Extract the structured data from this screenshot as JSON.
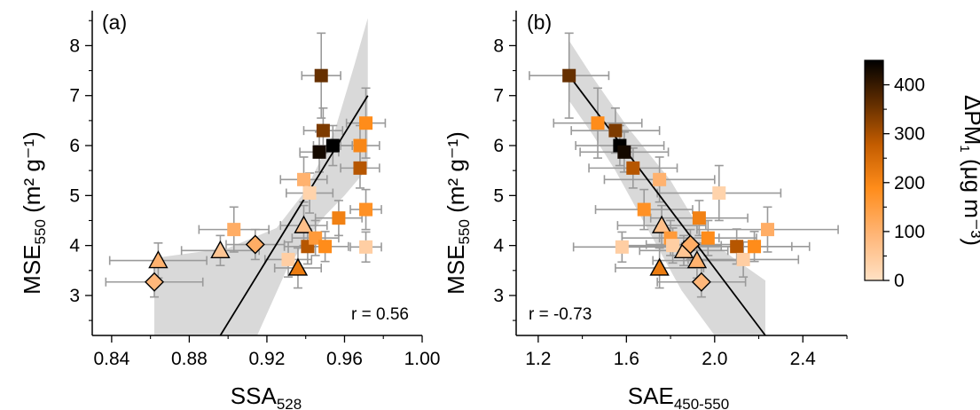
{
  "chart_data": [
    {
      "type": "scatter",
      "panel_label": "(a)",
      "xlabel_main": "SSA",
      "xlabel_sub": "528",
      "ylabel_main": "MSE",
      "ylabel_sub": "550",
      "ylabel_unit": " (m² g⁻¹)",
      "xlim": [
        0.83,
        1.0
      ],
      "ylim": [
        2.2,
        8.7
      ],
      "xticks": [
        "0.84",
        "0.88",
        "0.92",
        "0.96",
        "1.00"
      ],
      "xtick_values": [
        0.84,
        0.88,
        0.92,
        0.96,
        1.0
      ],
      "yticks": [
        "3",
        "4",
        "5",
        "6",
        "7",
        "8"
      ],
      "ytick_values": [
        3,
        4,
        5,
        6,
        7,
        8
      ],
      "r_label": "r = 0.56",
      "fit_line": [
        [
          0.896,
          2.2
        ],
        [
          0.972,
          7.0
        ]
      ],
      "confidence_band": {
        "upper": [
          [
            0.862,
            3.75
          ],
          [
            0.9,
            3.95
          ],
          [
            0.925,
            4.35
          ],
          [
            0.94,
            5.1
          ],
          [
            0.955,
            6.3
          ],
          [
            0.965,
            7.6
          ],
          [
            0.972,
            8.55
          ]
        ],
        "lower": [
          [
            0.972,
            5.55
          ],
          [
            0.96,
            5.0
          ],
          [
            0.95,
            4.6
          ],
          [
            0.94,
            4.1
          ],
          [
            0.93,
            3.5
          ],
          [
            0.915,
            2.2
          ],
          [
            0.862,
            2.2
          ]
        ]
      },
      "points": [
        {
          "marker": "diamond",
          "x": 0.862,
          "y": 3.27,
          "xerr": 0.025,
          "yerr": 0.3,
          "dpm": 90
        },
        {
          "marker": "triangle",
          "x": 0.864,
          "y": 3.7,
          "xerr": 0.025,
          "yerr": 0.35,
          "dpm": 100
        },
        {
          "marker": "triangle",
          "x": 0.896,
          "y": 3.9,
          "xerr": 0.02,
          "yerr": 0.3,
          "dpm": 60
        },
        {
          "marker": "square",
          "x": 0.903,
          "y": 4.32,
          "xerr": 0.018,
          "yerr": 0.45,
          "dpm": 110
        },
        {
          "marker": "diamond",
          "x": 0.914,
          "y": 4.02,
          "xerr": 0.015,
          "yerr": 0.3,
          "dpm": 110
        },
        {
          "marker": "square",
          "x": 0.931,
          "y": 3.72,
          "xerr": 0.012,
          "yerr": 0.35,
          "dpm": 40
        },
        {
          "marker": "triangle",
          "x": 0.936,
          "y": 3.55,
          "xerr": 0.012,
          "yerr": 0.4,
          "dpm": 210
        },
        {
          "marker": "triangle",
          "x": 0.939,
          "y": 4.4,
          "xerr": 0.012,
          "yerr": 0.4,
          "dpm": 70
        },
        {
          "marker": "square",
          "x": 0.939,
          "y": 5.32,
          "xerr": 0.012,
          "yerr": 0.45,
          "dpm": 100
        },
        {
          "marker": "square",
          "x": 0.942,
          "y": 5.05,
          "xerr": 0.012,
          "yerr": 0.4,
          "dpm": 30
        },
        {
          "marker": "square",
          "x": 0.941,
          "y": 3.98,
          "xerr": 0.012,
          "yerr": 0.35,
          "dpm": 280
        },
        {
          "marker": "square",
          "x": 0.945,
          "y": 4.15,
          "xerr": 0.012,
          "yerr": 0.35,
          "dpm": 150
        },
        {
          "marker": "square",
          "x": 0.95,
          "y": 3.98,
          "xerr": 0.012,
          "yerr": 0.3,
          "dpm": 180
        },
        {
          "marker": "square",
          "x": 0.947,
          "y": 5.87,
          "xerr": 0.01,
          "yerr": 0.4,
          "dpm": 430
        },
        {
          "marker": "square",
          "x": 0.948,
          "y": 7.4,
          "xerr": 0.01,
          "yerr": 0.85,
          "dpm": 350
        },
        {
          "marker": "square",
          "x": 0.949,
          "y": 6.3,
          "xerr": 0.01,
          "yerr": 0.45,
          "dpm": 330
        },
        {
          "marker": "square",
          "x": 0.954,
          "y": 6.0,
          "xerr": 0.01,
          "yerr": 0.4,
          "dpm": 450
        },
        {
          "marker": "square",
          "x": 0.957,
          "y": 4.55,
          "xerr": 0.012,
          "yerr": 0.35,
          "dpm": 200
        },
        {
          "marker": "square",
          "x": 0.968,
          "y": 6.0,
          "xerr": 0.01,
          "yerr": 0.4,
          "dpm": 190
        },
        {
          "marker": "square",
          "x": 0.968,
          "y": 5.55,
          "xerr": 0.01,
          "yerr": 0.4,
          "dpm": 280
        },
        {
          "marker": "square",
          "x": 0.971,
          "y": 6.45,
          "xerr": 0.01,
          "yerr": 0.7,
          "dpm": 180
        },
        {
          "marker": "square",
          "x": 0.971,
          "y": 4.72,
          "xerr": 0.008,
          "yerr": 0.4,
          "dpm": 170
        },
        {
          "marker": "square",
          "x": 0.971,
          "y": 3.97,
          "xerr": 0.008,
          "yerr": 0.3,
          "dpm": 40
        }
      ]
    },
    {
      "type": "scatter",
      "panel_label": "(b)",
      "xlabel_main": "SAE",
      "xlabel_sub": "450-550",
      "ylabel_main": "MSE",
      "ylabel_sub": "550",
      "ylabel_unit": " (m² g⁻¹)",
      "xlim": [
        1.1,
        2.6
      ],
      "ylim": [
        2.2,
        8.7
      ],
      "xticks": [
        "1.2",
        "1.6",
        "2.0",
        "2.4"
      ],
      "xtick_values": [
        1.2,
        1.6,
        2.0,
        2.4
      ],
      "yticks": [
        "3",
        "4",
        "5",
        "6",
        "7",
        "8"
      ],
      "ytick_values": [
        3,
        4,
        5,
        6,
        7,
        8
      ],
      "r_label": "r = -0.73",
      "fit_line": [
        [
          1.34,
          7.4
        ],
        [
          2.23,
          2.2
        ]
      ],
      "confidence_band": {
        "upper": [
          [
            1.34,
            8.1
          ],
          [
            1.45,
            7.35
          ],
          [
            1.6,
            6.4
          ],
          [
            1.8,
            5.3
          ],
          [
            1.95,
            4.2
          ],
          [
            2.1,
            3.7
          ],
          [
            2.23,
            3.3
          ]
        ],
        "lower": [
          [
            2.23,
            2.2
          ],
          [
            2.0,
            2.2
          ],
          [
            1.85,
            3.1
          ],
          [
            1.7,
            4.3
          ],
          [
            1.55,
            5.5
          ],
          [
            1.45,
            6.2
          ],
          [
            1.34,
            6.9
          ]
        ]
      },
      "points": [
        {
          "marker": "square",
          "x": 1.34,
          "y": 7.4,
          "xerr": 0.18,
          "yerr": 0.85,
          "dpm": 350
        },
        {
          "marker": "square",
          "x": 1.47,
          "y": 6.45,
          "xerr": 0.2,
          "yerr": 0.7,
          "dpm": 180
        },
        {
          "marker": "square",
          "x": 1.55,
          "y": 6.3,
          "xerr": 0.2,
          "yerr": 0.45,
          "dpm": 330
        },
        {
          "marker": "square",
          "x": 1.57,
          "y": 6.0,
          "xerr": 0.2,
          "yerr": 0.4,
          "dpm": 450
        },
        {
          "marker": "square",
          "x": 1.59,
          "y": 5.87,
          "xerr": 0.2,
          "yerr": 0.4,
          "dpm": 430
        },
        {
          "marker": "square",
          "x": 1.63,
          "y": 5.55,
          "xerr": 0.2,
          "yerr": 0.4,
          "dpm": 280
        },
        {
          "marker": "square",
          "x": 1.68,
          "y": 4.72,
          "xerr": 0.22,
          "yerr": 0.4,
          "dpm": 170
        },
        {
          "marker": "square",
          "x": 1.58,
          "y": 3.97,
          "xerr": 0.22,
          "yerr": 0.3,
          "dpm": 40
        },
        {
          "marker": "square",
          "x": 1.75,
          "y": 5.32,
          "xerr": 0.25,
          "yerr": 0.45,
          "dpm": 100
        },
        {
          "marker": "triangle",
          "x": 1.76,
          "y": 4.4,
          "xerr": 0.2,
          "yerr": 0.4,
          "dpm": 70
        },
        {
          "marker": "square",
          "x": 1.8,
          "y": 4.15,
          "xerr": 0.22,
          "yerr": 0.35,
          "dpm": 150
        },
        {
          "marker": "square",
          "x": 1.81,
          "y": 4.0,
          "xerr": 0.22,
          "yerr": 0.35,
          "dpm": 40
        },
        {
          "marker": "triangle",
          "x": 1.75,
          "y": 3.55,
          "xerr": 0.2,
          "yerr": 0.4,
          "dpm": 210
        },
        {
          "marker": "triangle",
          "x": 1.86,
          "y": 3.9,
          "xerr": 0.2,
          "yerr": 0.3,
          "dpm": 60
        },
        {
          "marker": "diamond",
          "x": 1.89,
          "y": 4.02,
          "xerr": 0.2,
          "yerr": 0.3,
          "dpm": 110
        },
        {
          "marker": "triangle",
          "x": 1.92,
          "y": 3.7,
          "xerr": 0.2,
          "yerr": 0.35,
          "dpm": 100
        },
        {
          "marker": "square",
          "x": 1.93,
          "y": 4.55,
          "xerr": 0.22,
          "yerr": 0.35,
          "dpm": 200
        },
        {
          "marker": "diamond",
          "x": 1.94,
          "y": 3.27,
          "xerr": 0.2,
          "yerr": 0.3,
          "dpm": 90
        },
        {
          "marker": "square",
          "x": 1.97,
          "y": 4.15,
          "xerr": 0.22,
          "yerr": 0.35,
          "dpm": 180
        },
        {
          "marker": "square",
          "x": 2.02,
          "y": 5.05,
          "xerr": 0.28,
          "yerr": 0.55,
          "dpm": 30
        },
        {
          "marker": "square",
          "x": 2.1,
          "y": 3.98,
          "xerr": 0.25,
          "yerr": 0.35,
          "dpm": 280
        },
        {
          "marker": "square",
          "x": 2.13,
          "y": 3.72,
          "xerr": 0.25,
          "yerr": 0.35,
          "dpm": 40
        },
        {
          "marker": "square",
          "x": 2.18,
          "y": 3.98,
          "xerr": 0.25,
          "yerr": 0.3,
          "dpm": 180
        },
        {
          "marker": "square",
          "x": 2.24,
          "y": 4.32,
          "xerr": 0.32,
          "yerr": 0.45,
          "dpm": 110
        }
      ]
    }
  ],
  "colorbar": {
    "label_main": "ΔPM",
    "label_sub": "1",
    "label_unit": " (μg m⁻³)",
    "range": [
      0,
      450
    ],
    "ticks": [
      "0",
      "100",
      "200",
      "300",
      "400"
    ],
    "tick_values": [
      0,
      100,
      200,
      300,
      400
    ],
    "colors": [
      "#ffe1c4",
      "#ffb77a",
      "#ff8c1a",
      "#c25c00",
      "#5a2a00",
      "#000000"
    ]
  }
}
